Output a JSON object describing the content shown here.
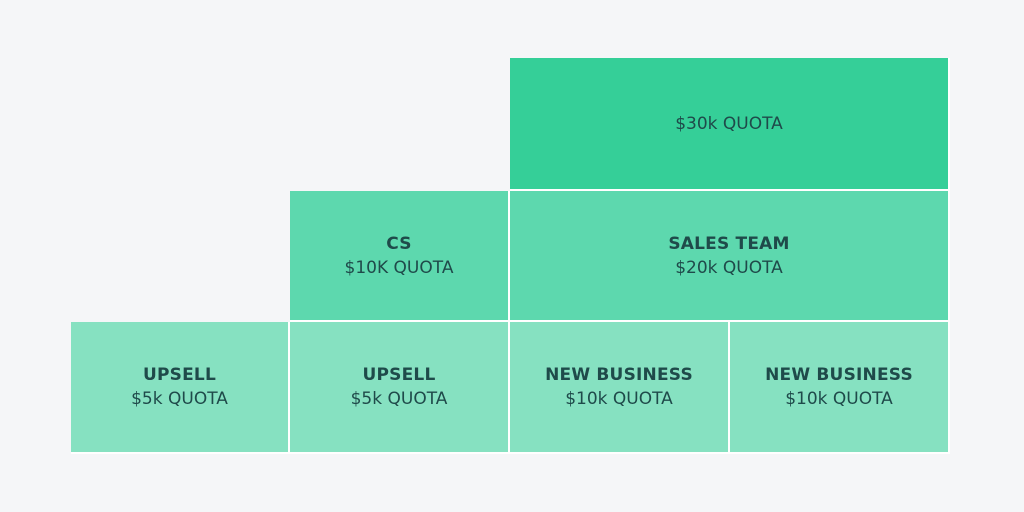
{
  "blocks": {
    "top_sales": {
      "title": "",
      "quota": "$30k QUOTA"
    },
    "cs": {
      "title": "CS",
      "quota": "$10K QUOTA"
    },
    "sales_team": {
      "title": "SALES TEAM",
      "quota": "$20k QUOTA"
    },
    "upsell_1": {
      "title": "UPSELL",
      "quota": "$5k QUOTA"
    },
    "upsell_2": {
      "title": "UPSELL",
      "quota": "$5k QUOTA"
    },
    "new_business_1": {
      "title": "NEW BUSINESS",
      "quota": "$10k QUOTA"
    },
    "new_business_2": {
      "title": "NEW BUSINESS",
      "quota": "$10k QUOTA"
    }
  },
  "colors": {
    "background": "#f5f6f8",
    "tier_top": "#35cf98",
    "tier_mid": "#5dd8ae",
    "tier_low": "#86e1c1",
    "text": "#1f4a4a"
  }
}
